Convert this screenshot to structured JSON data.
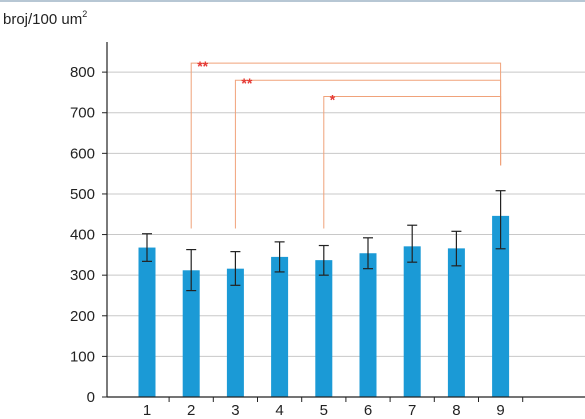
{
  "chart_data": {
    "type": "bar",
    "ylabel": "broj/100 um",
    "ylabel_superscript": "2",
    "categories": [
      "1",
      "2",
      "3",
      "4",
      "5",
      "6",
      "7",
      "8",
      "9"
    ],
    "values": [
      368,
      312,
      316,
      345,
      337,
      354,
      371,
      366,
      446
    ],
    "errors": [
      [
        334,
        402
      ],
      [
        262,
        363
      ],
      [
        275,
        358
      ],
      [
        308,
        382
      ],
      [
        300,
        373
      ],
      [
        316,
        392
      ],
      [
        332,
        423
      ],
      [
        323,
        408
      ],
      [
        365,
        508
      ]
    ],
    "ylim": [
      0,
      900
    ],
    "yticks": [
      0,
      100,
      200,
      300,
      400,
      500,
      600,
      700,
      800
    ],
    "grid": true,
    "colors": {
      "bar": "#1b9ad6",
      "error": "#222222",
      "grid": "#c8c8c8",
      "significance": "#f0a27a",
      "star": "#e53935"
    },
    "significance": [
      {
        "from": "2",
        "to": "9",
        "label": "**",
        "level": 822,
        "start_y": 415,
        "end_y": 570
      },
      {
        "from": "3",
        "to": "9",
        "label": "**",
        "level": 780,
        "start_y": 415,
        "end_y": 570
      },
      {
        "from": "5",
        "to": "9",
        "label": "*",
        "level": 740,
        "start_y": 415,
        "end_y": 570
      }
    ]
  }
}
